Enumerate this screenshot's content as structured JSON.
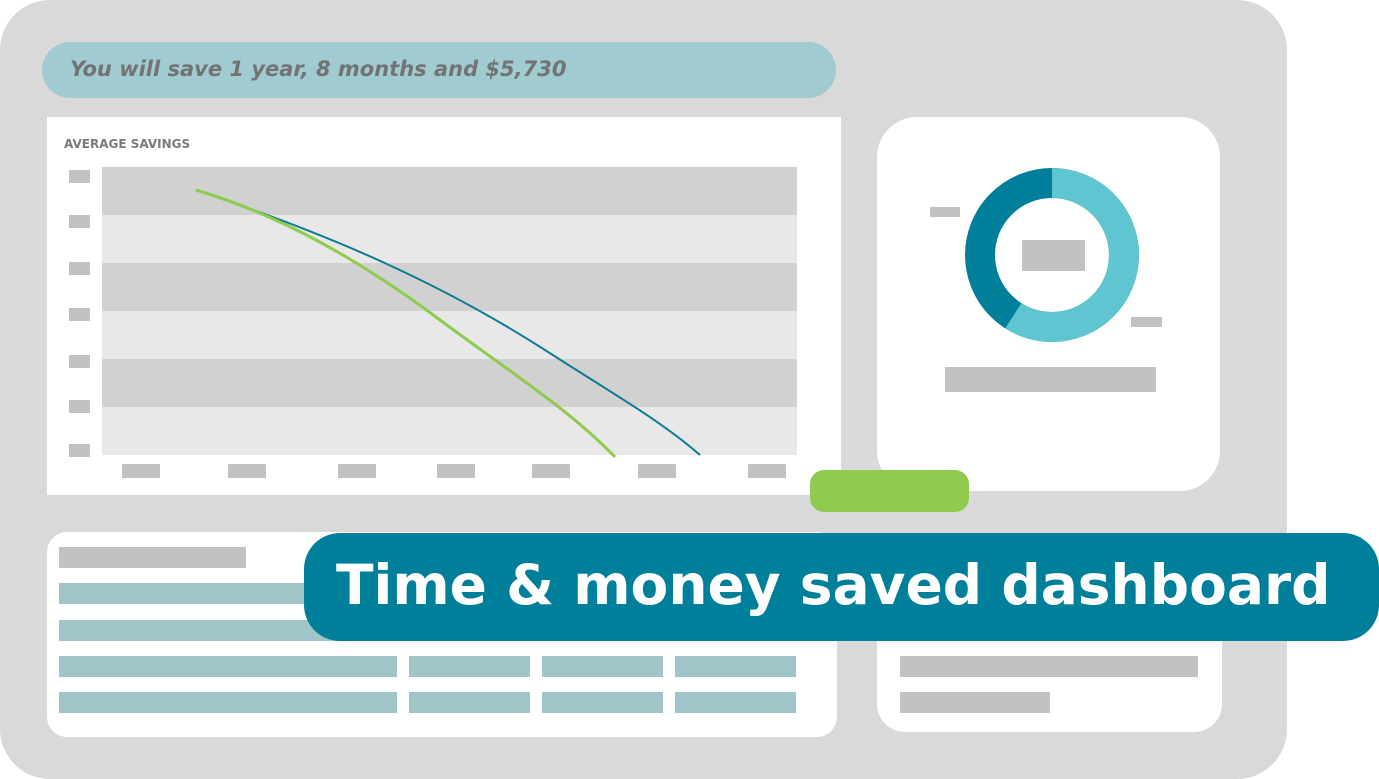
{
  "header": {
    "savings_message": "You will save 1 year, 8 months and $5,730"
  },
  "chart": {
    "title": "AVERAGE SAVINGS",
    "line_colors": [
      "#0f7a93",
      "#8fcb4f"
    ]
  },
  "donut": {
    "colors": {
      "primary": "#5fc6d1",
      "secondary": "#007f9a"
    },
    "primary_fraction": 0.59
  },
  "banner": {
    "title": "Time & money saved dashboard"
  },
  "colors": {
    "accent": "#007f9a",
    "green": "#8fcb4f",
    "frame": "#d9d9d9"
  }
}
